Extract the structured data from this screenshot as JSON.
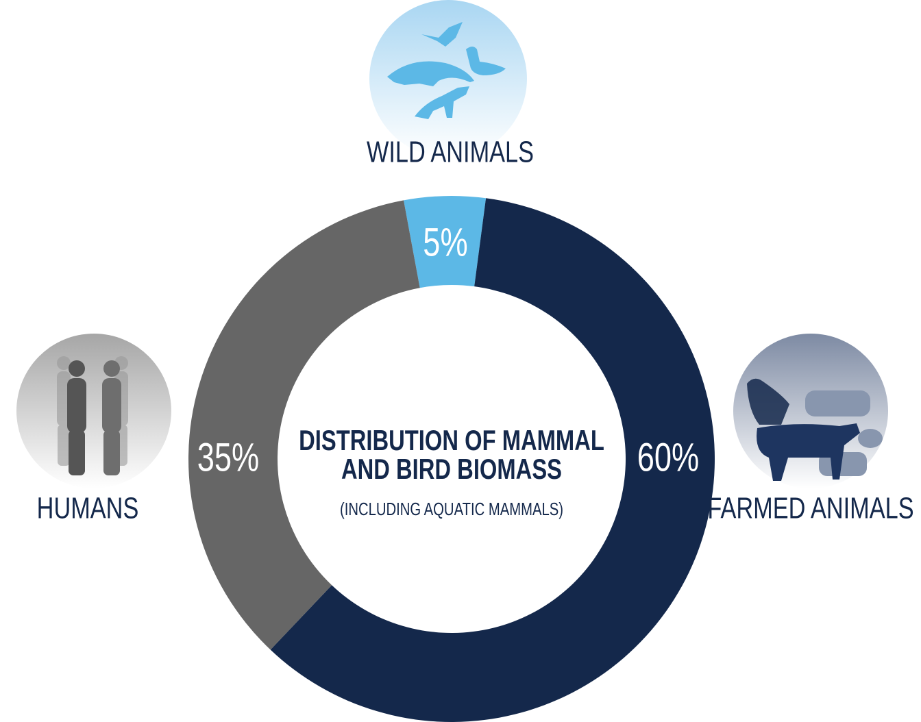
{
  "chart_data": {
    "type": "donut",
    "title": [
      "DISTRIBUTION OF MAMMAL",
      "AND BIRD BIOMASS"
    ],
    "subtitle": "(INCLUDING AQUATIC MAMMALS)",
    "categories": [
      "WILD ANIMALS",
      "FARMED ANIMALS",
      "HUMANS"
    ],
    "values": [
      5,
      60,
      35
    ],
    "value_labels": [
      "5%",
      "60%",
      "35%"
    ],
    "colors": [
      "#5cb8e6",
      "#14284b",
      "#666666"
    ]
  }
}
